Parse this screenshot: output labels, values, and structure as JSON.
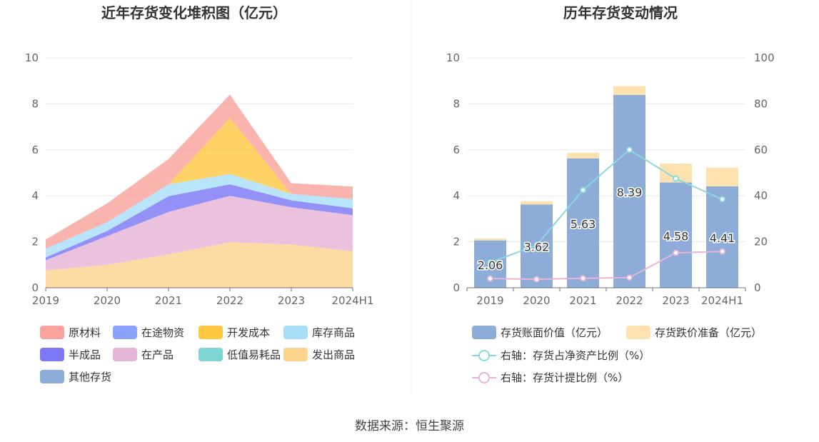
{
  "source_text": "数据来源：恒生聚源",
  "chart_data": [
    {
      "type": "area",
      "stacked": true,
      "title": "近年存货变化堆积图（亿元）",
      "xlabel": "",
      "ylabel": "",
      "categories": [
        "2019",
        "2020",
        "2021",
        "2022",
        "2023",
        "2024H1"
      ],
      "ylim": [
        0,
        10
      ],
      "yticks": [
        "0",
        "2",
        "4",
        "6",
        "8",
        "10"
      ],
      "grid": true,
      "legend_position": "bottom",
      "series": [
        {
          "name": "发出商品",
          "color": "#fcd38d",
          "values": [
            0.75,
            1.0,
            1.45,
            1.98,
            1.88,
            1.58
          ]
        },
        {
          "name": "在产品",
          "color": "#e6b4d6",
          "values": [
            0.45,
            1.25,
            1.85,
            2.02,
            1.62,
            1.58
          ]
        },
        {
          "name": "半成品",
          "color": "#7b79f6",
          "values": [
            0.12,
            0.22,
            0.68,
            0.5,
            0.3,
            0.3
          ]
        },
        {
          "name": "库存商品",
          "color": "#a8dff8",
          "values": [
            0.38,
            0.38,
            0.52,
            0.45,
            0.28,
            0.4
          ]
        },
        {
          "name": "开发成本",
          "color": "#fec843",
          "values": [
            0.0,
            0.0,
            0.0,
            2.43,
            0.0,
            0.0
          ]
        },
        {
          "name": "原材料",
          "color": "#f8a39b",
          "values": [
            0.4,
            0.82,
            1.1,
            1.02,
            0.47,
            0.54
          ]
        },
        {
          "name": "在途物资",
          "color": "#8aa2fb",
          "values": [
            0,
            0,
            0,
            0,
            0,
            0
          ]
        },
        {
          "name": "低值易耗品",
          "color": "#7fd5d3",
          "values": [
            0,
            0,
            0,
            0,
            0,
            0
          ]
        },
        {
          "name": "其他存货",
          "color": "#8eacd8",
          "values": [
            0,
            0,
            0,
            0,
            0,
            0
          ]
        }
      ],
      "legend_order": [
        "原材料",
        "在途物资",
        "开发成本",
        "库存商品",
        "半成品",
        "在产品",
        "低值易耗品",
        "发出商品",
        "其他存货"
      ]
    },
    {
      "type": "bar",
      "stacked": true,
      "title": "历年存货变动情况",
      "xlabel": "",
      "ylabel": "",
      "categories": [
        "2019",
        "2020",
        "2021",
        "2022",
        "2023",
        "2024H1"
      ],
      "ylim": [
        0,
        10
      ],
      "yticks": [
        "0",
        "2",
        "4",
        "6",
        "8",
        "10"
      ],
      "y2lim": [
        0,
        100
      ],
      "y2ticks": [
        "0",
        "20",
        "40",
        "60",
        "80",
        "100"
      ],
      "grid": true,
      "legend_position": "bottom",
      "series": [
        {
          "name": "存货账面价值（亿元）",
          "kind": "bar",
          "color": "#8eacd8",
          "values": [
            2.06,
            3.62,
            5.63,
            8.39,
            4.58,
            4.41
          ],
          "labels": [
            "2.06",
            "3.62",
            "5.63",
            "8.39",
            "4.58",
            "4.41"
          ]
        },
        {
          "name": "存货跌价准备（亿元）",
          "kind": "bar",
          "color": "#fde2b0",
          "values": [
            0.08,
            0.14,
            0.24,
            0.38,
            0.82,
            0.82
          ]
        },
        {
          "name": "右轴：存货占净资产比例（%）",
          "kind": "line",
          "axis": "right",
          "color": "#8ad8de",
          "values": [
            11.0,
            18.5,
            42.5,
            60.0,
            47.5,
            38.5
          ]
        },
        {
          "name": "右轴：存货计提比例（%）",
          "kind": "line",
          "axis": "right",
          "color": "#e6b4d6",
          "values": [
            4.0,
            3.7,
            4.1,
            4.4,
            15.2,
            15.8
          ]
        }
      ]
    }
  ]
}
